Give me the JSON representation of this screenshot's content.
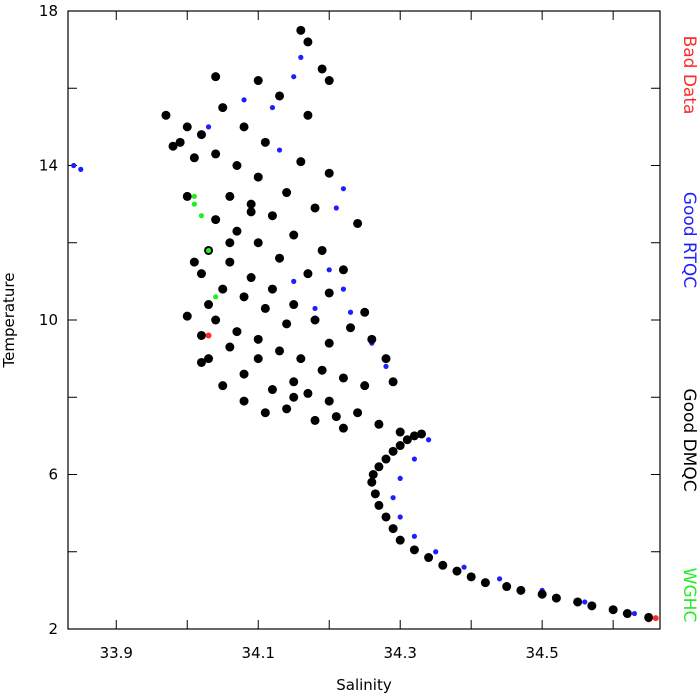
{
  "chart_data": {
    "type": "scatter",
    "xlabel": "Salinity",
    "ylabel": "Temperature",
    "xlim": [
      33.832,
      34.666
    ],
    "ylim": [
      2,
      18
    ],
    "xticks": [
      33.9,
      34.1,
      34.3,
      34.5
    ],
    "yticks": [
      2,
      6,
      10,
      14,
      18
    ],
    "xminor_ticks": [
      34.0,
      34.2,
      34.4,
      34.6
    ],
    "yminor_ticks": [
      4,
      8,
      12,
      16
    ],
    "legend": "right",
    "series": [
      {
        "name": "Bad Data",
        "color": "#ff2a2a",
        "size": 3,
        "x": [
          34.65,
          34.66,
          34.02,
          34.03
        ],
        "values": [
          2.25,
          2.28,
          9.6,
          9.6
        ]
      },
      {
        "name": "Good RTQC",
        "color": "#1e1eff",
        "size": 2.6,
        "x": [
          34.63,
          34.56,
          34.5,
          34.44,
          34.39,
          34.35,
          34.32,
          34.3,
          34.29,
          34.3,
          34.32,
          34.34,
          34.28,
          34.26,
          34.23,
          34.22,
          34.2,
          34.22,
          34.21,
          34.16,
          34.15,
          34.12,
          34.13,
          34.08,
          34.03,
          33.85,
          33.84,
          34.15,
          34.18
        ],
        "values": [
          2.4,
          2.7,
          3.0,
          3.3,
          3.6,
          4.0,
          4.4,
          4.9,
          5.4,
          5.9,
          6.4,
          6.9,
          8.8,
          9.4,
          10.2,
          10.8,
          11.3,
          13.4,
          12.9,
          16.8,
          16.3,
          15.5,
          14.4,
          15.7,
          15.0,
          13.9,
          14.0,
          11.0,
          10.3
        ]
      },
      {
        "name": "Good DMQC",
        "color": "#000000",
        "size": 4.5,
        "x": [
          34.65,
          34.62,
          34.6,
          34.57,
          34.55,
          34.52,
          34.5,
          34.47,
          34.45,
          34.42,
          34.4,
          34.38,
          34.36,
          34.34,
          34.32,
          34.3,
          34.29,
          34.28,
          34.27,
          34.265,
          34.26,
          34.262,
          34.27,
          34.28,
          34.29,
          34.3,
          34.31,
          34.32,
          34.33,
          34.3,
          34.27,
          34.24,
          34.2,
          34.17,
          34.05,
          34.08,
          34.12,
          34.15,
          34.1,
          34.06,
          34.03,
          34.02,
          34.04,
          34.07,
          34.1,
          34.13,
          34.16,
          34.19,
          34.22,
          34.25,
          34.2,
          34.14,
          34.11,
          34.08,
          34.05,
          34.02,
          34.03,
          34.06,
          34.09,
          34.12,
          34.15,
          34.18,
          34.23,
          34.26,
          34.28,
          34.25,
          34.2,
          34.17,
          34.13,
          34.1,
          34.07,
          34.04,
          34.06,
          34.09,
          34.12,
          34.15,
          34.19,
          34.22,
          34.24,
          34.18,
          34.14,
          34.1,
          34.07,
          34.04,
          34.02,
          33.99,
          33.97,
          34.0,
          34.05,
          34.08,
          34.11,
          34.16,
          34.2,
          34.17,
          34.13,
          34.1,
          34.04,
          34.19,
          34.2,
          34.16,
          34.17,
          33.98,
          34.01,
          34.0,
          34.01,
          34.0,
          34.02,
          34.14,
          34.18,
          34.21,
          34.08,
          34.11,
          34.15,
          34.22,
          34.06,
          34.09,
          34.03,
          34.29
        ],
        "values": [
          2.3,
          2.4,
          2.5,
          2.6,
          2.7,
          2.8,
          2.9,
          3.0,
          3.1,
          3.2,
          3.35,
          3.5,
          3.65,
          3.85,
          4.05,
          4.3,
          4.6,
          4.9,
          5.2,
          5.5,
          5.8,
          6.0,
          6.2,
          6.4,
          6.6,
          6.75,
          6.9,
          7.0,
          7.05,
          7.1,
          7.3,
          7.6,
          7.9,
          8.1,
          8.3,
          8.6,
          8.2,
          8.4,
          9.0,
          9.3,
          9.0,
          9.6,
          10.0,
          9.7,
          9.5,
          9.2,
          9.0,
          8.7,
          8.5,
          8.3,
          9.4,
          9.9,
          10.3,
          10.6,
          10.8,
          11.2,
          11.8,
          11.5,
          11.1,
          10.8,
          10.4,
          10.0,
          9.8,
          9.5,
          9.0,
          10.2,
          10.7,
          11.2,
          11.6,
          12.0,
          12.3,
          12.6,
          13.2,
          13.0,
          12.7,
          12.2,
          11.8,
          11.3,
          12.5,
          12.9,
          13.3,
          13.7,
          14.0,
          14.3,
          14.8,
          14.6,
          15.3,
          15.0,
          15.5,
          15.0,
          14.6,
          14.1,
          13.8,
          15.3,
          15.8,
          16.2,
          16.3,
          16.5,
          16.2,
          17.5,
          17.2,
          14.5,
          14.2,
          13.2,
          11.5,
          10.1,
          8.9,
          7.7,
          7.4,
          7.5,
          7.9,
          7.6,
          8.0,
          7.2,
          12.0,
          12.8,
          10.4,
          8.4
        ]
      },
      {
        "name": "WGHC",
        "color": "#22ee22",
        "size": 2.6,
        "x": [
          34.01,
          34.01,
          34.02,
          34.03,
          34.04
        ],
        "values": [
          13.2,
          13.0,
          12.7,
          11.8,
          10.6
        ]
      }
    ]
  }
}
